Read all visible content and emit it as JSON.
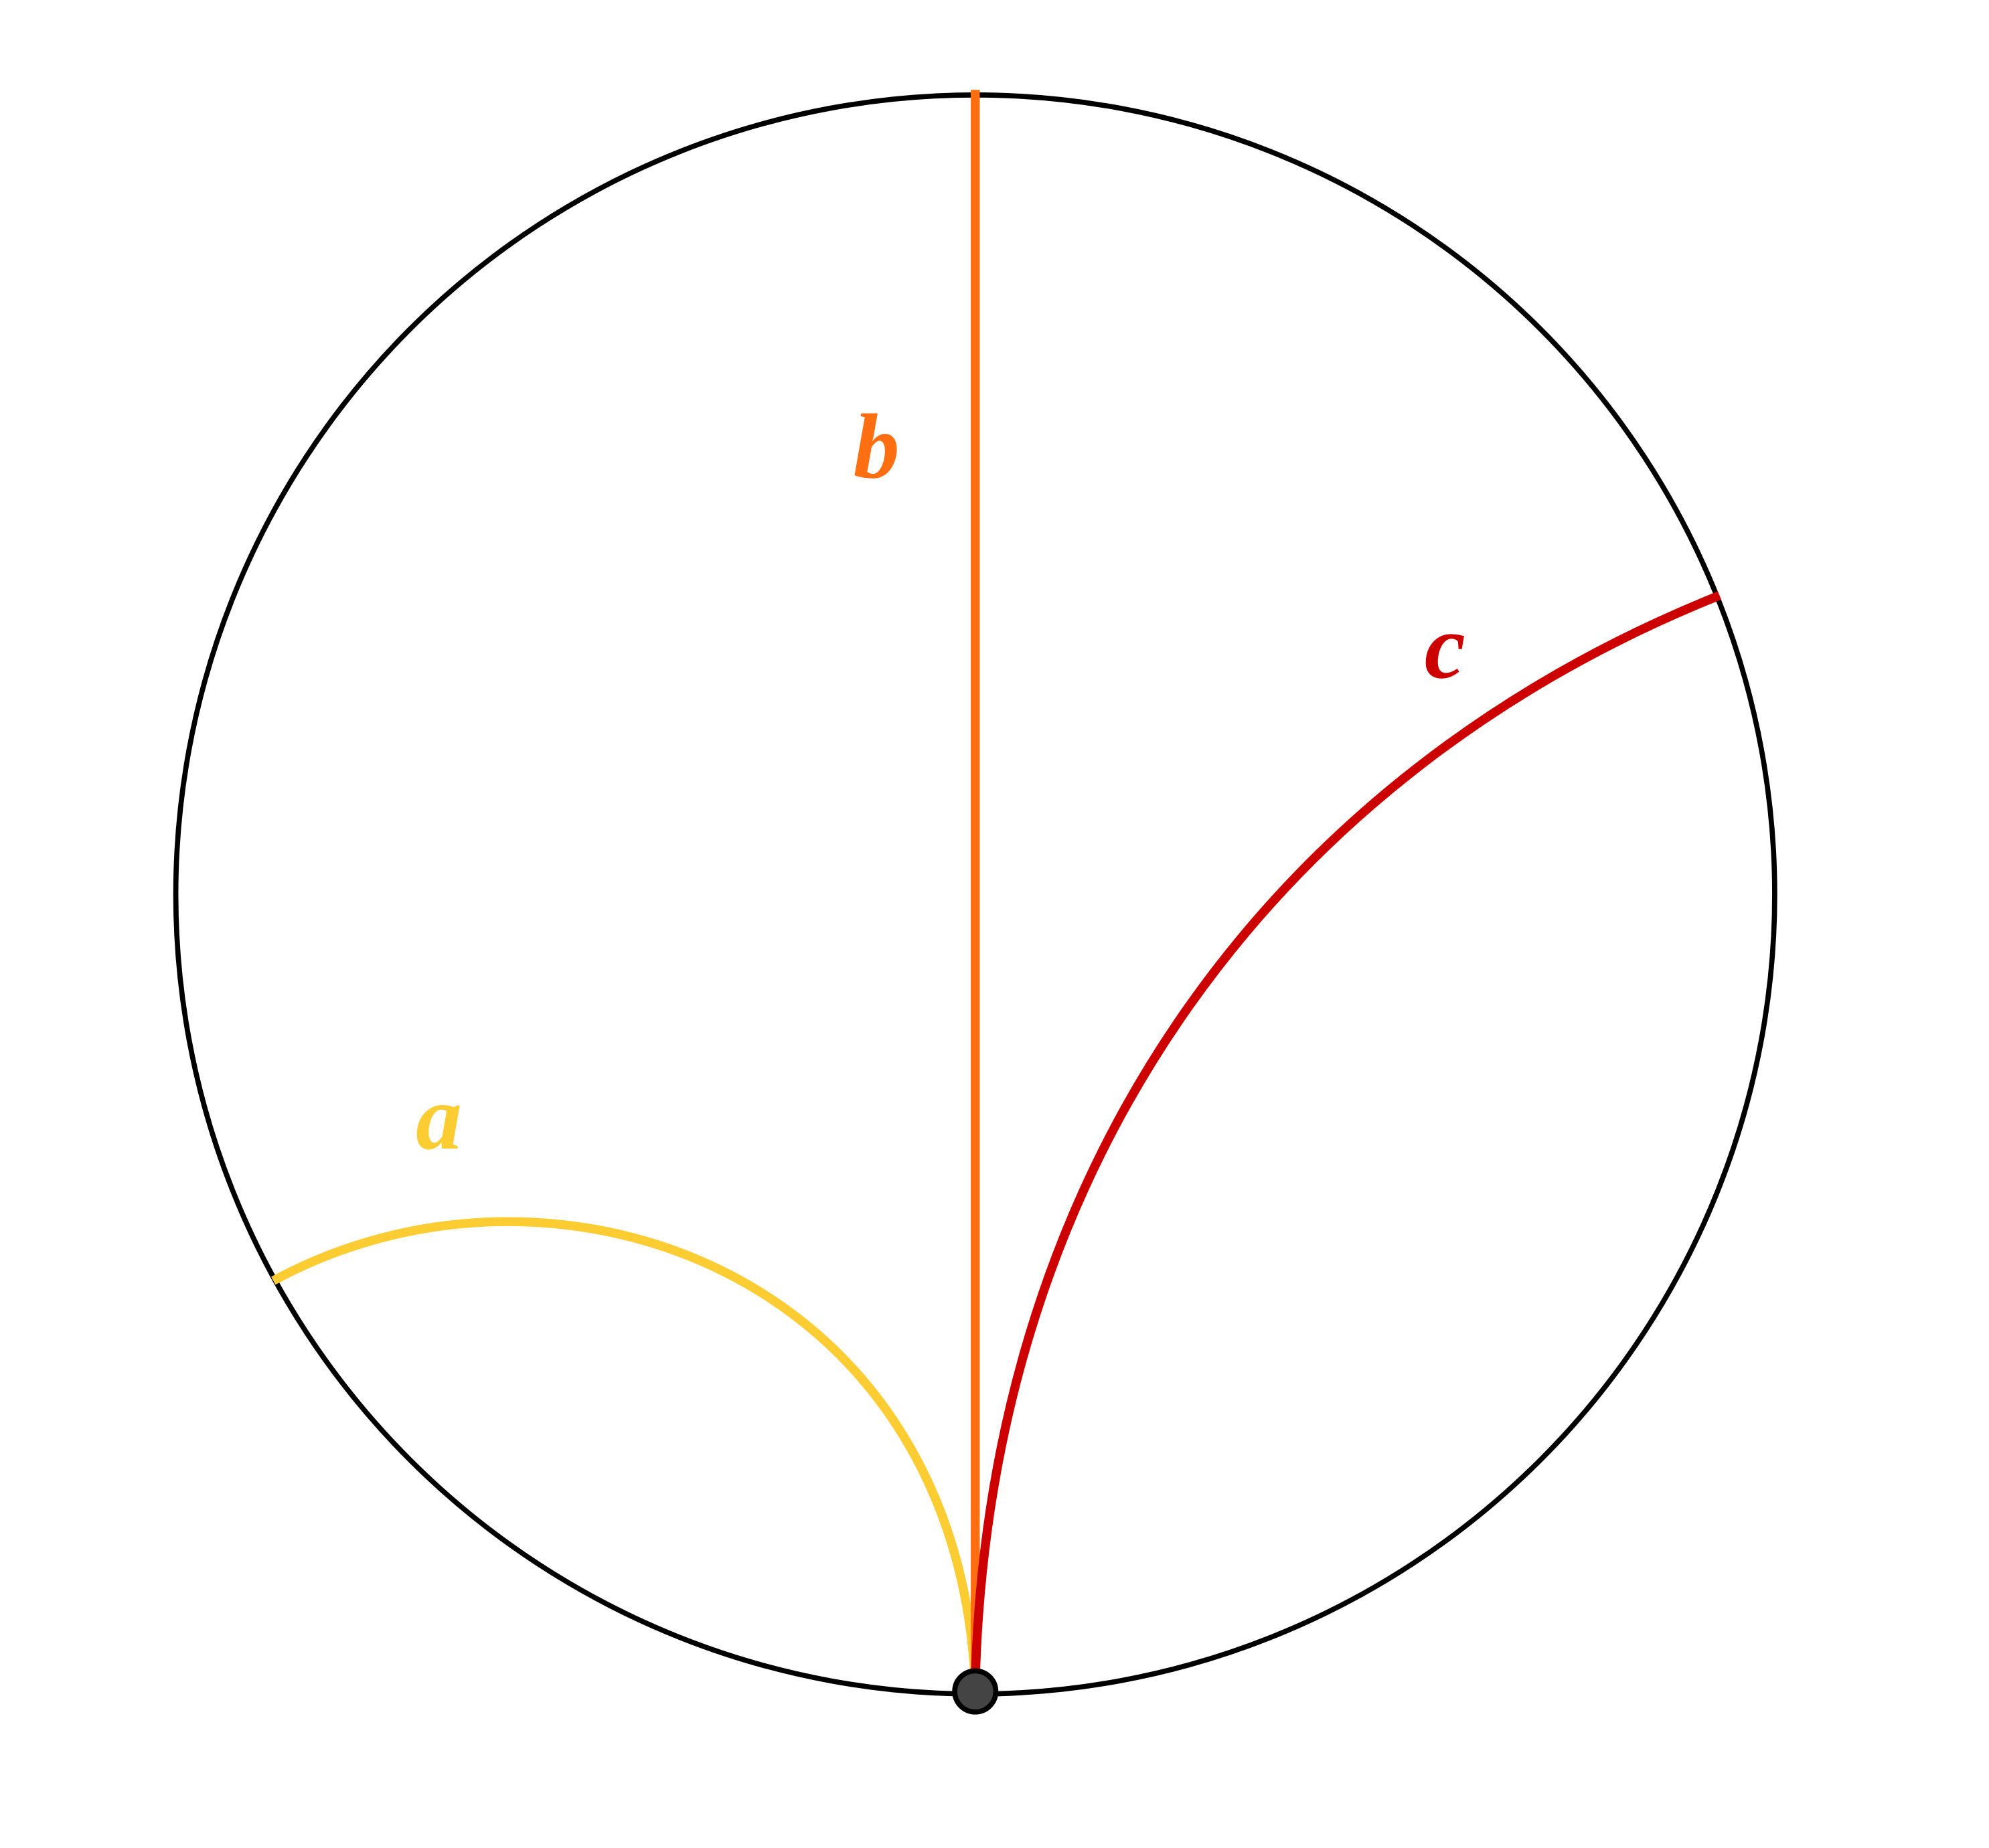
{
  "curves": [
    {
      "label": "a"
    },
    {
      "label": "b"
    },
    {
      "label": "c"
    }
  ]
}
